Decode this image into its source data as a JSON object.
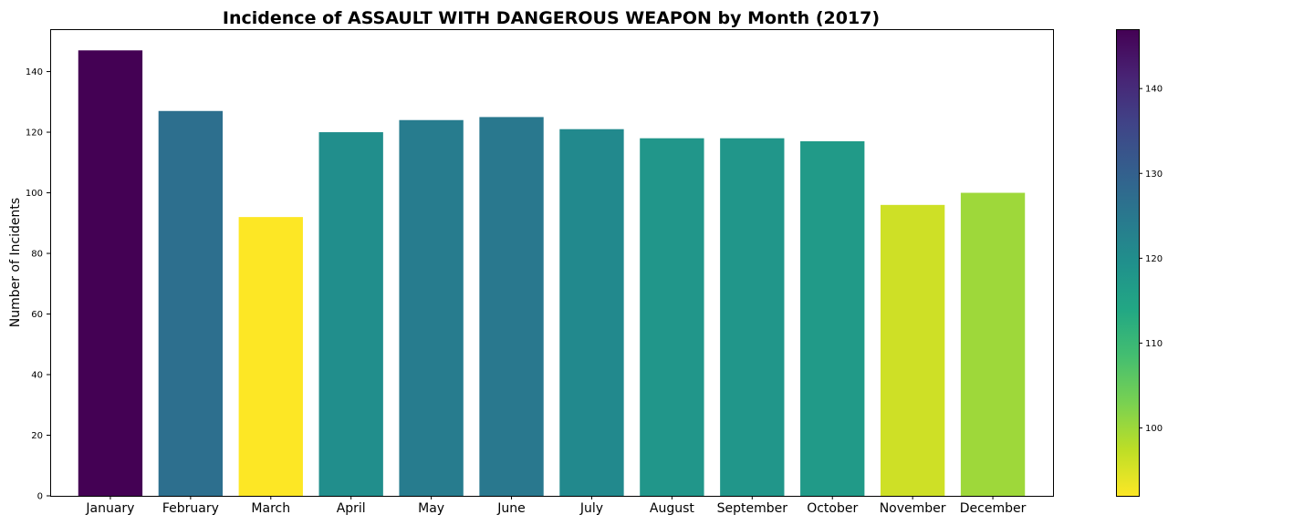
{
  "chart_data": {
    "type": "bar",
    "title": "Incidence of ASSAULT WITH DANGEROUS WEAPON by Month (2017)",
    "xlabel": "",
    "ylabel": "Number of Incidents",
    "categories": [
      "January",
      "February",
      "March",
      "April",
      "May",
      "June",
      "July",
      "August",
      "September",
      "October",
      "November",
      "December"
    ],
    "values": [
      147,
      127,
      92,
      120,
      124,
      125,
      121,
      118,
      118,
      117,
      96,
      100
    ],
    "ylim": [
      0,
      154
    ],
    "yticks": [
      0,
      20,
      40,
      60,
      80,
      100,
      120,
      140
    ],
    "grid": false,
    "colormap": "viridis_r",
    "colorbar": {
      "range": [
        92,
        147
      ],
      "ticks": [
        100,
        110,
        120,
        130,
        140
      ]
    }
  }
}
